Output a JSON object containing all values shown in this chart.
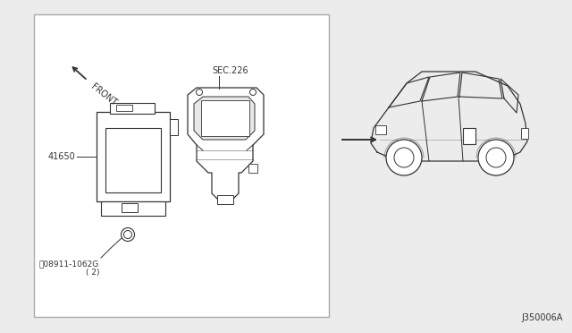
{
  "bg_color": "#ececec",
  "box_facecolor": "#ffffff",
  "box_edgecolor": "#aaaaaa",
  "line_color": "#333333",
  "text_color": "#333333",
  "title_code": "J350006A",
  "sec_label": "SEC.226",
  "part_41650": "41650",
  "part_bolt": "ⓝ08911-1062G\n( 2)",
  "front_label": "FRONT"
}
